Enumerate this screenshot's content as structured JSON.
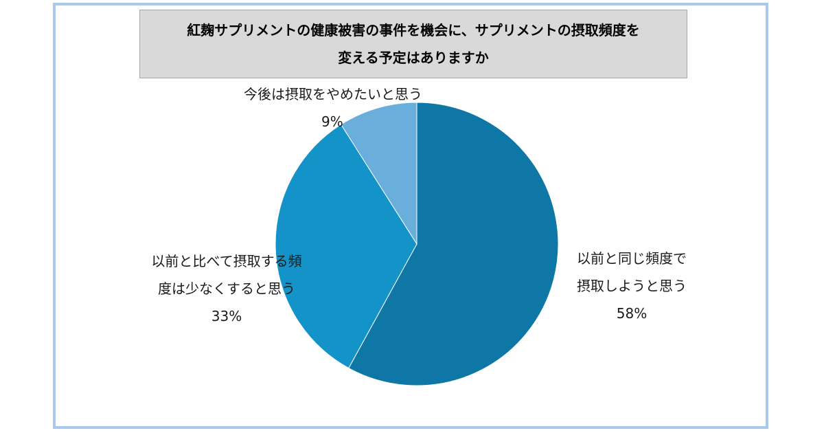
{
  "chart_data": {
    "type": "pie",
    "title_lines": [
      "紅麹サプリメントの健康被害の事件を機会に、サプリメントの摂取頻度を",
      "変える予定はありますか"
    ],
    "slices": [
      {
        "label_lines": [
          "以前と同じ頻度で",
          "摂取しようと思う"
        ],
        "value": 58,
        "value_label": "58%",
        "color": "#0e77a6"
      },
      {
        "label_lines": [
          "以前と比べて摂取する頻",
          "度は少なくすると思う"
        ],
        "value": 33,
        "value_label": "33%",
        "color": "#1393c8"
      },
      {
        "label_lines": [
          "今後は摂取をやめたいと思う"
        ],
        "value": 9,
        "value_label": "9%",
        "color": "#6aaedc"
      }
    ],
    "start_angle": "top",
    "direction": "clockwise",
    "legend": "none"
  }
}
